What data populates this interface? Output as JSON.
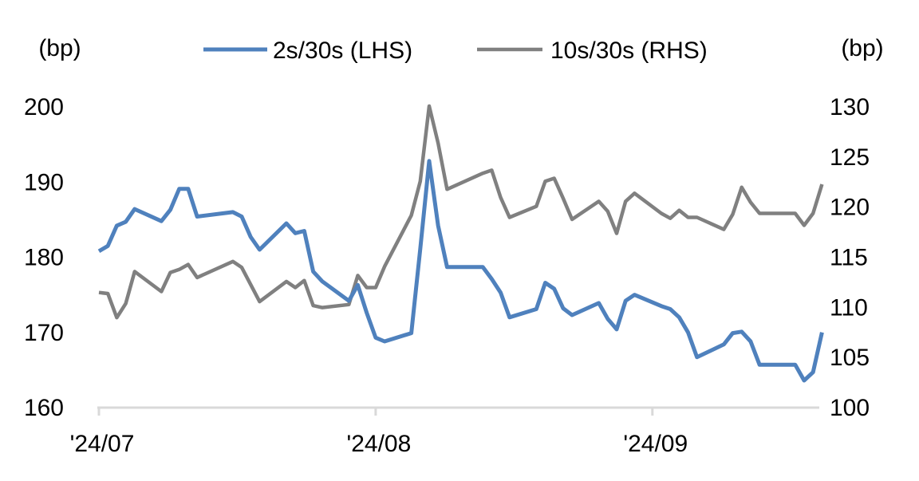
{
  "chart_data": {
    "type": "line",
    "title": "",
    "left_axis": {
      "unit_label": "(bp)",
      "ylim": [
        160,
        200
      ],
      "ticks": [
        160,
        170,
        180,
        190,
        200
      ]
    },
    "right_axis": {
      "unit_label": "(bp)",
      "ylim": [
        100,
        130
      ],
      "ticks": [
        100,
        105,
        110,
        115,
        120,
        125,
        130
      ]
    },
    "x_axis": {
      "range": [
        "2024-07-01",
        "2024-09-20"
      ],
      "ticks": [
        {
          "date": "2024-07-01",
          "label": "'24/07"
        },
        {
          "date": "2024-08-01",
          "label": "'24/08"
        },
        {
          "date": "2024-09-01",
          "label": "'24/09"
        }
      ]
    },
    "grid": false,
    "legend": {
      "placement": "top"
    },
    "x": [
      "2024-07-01",
      "2024-07-02",
      "2024-07-03",
      "2024-07-04",
      "2024-07-05",
      "2024-07-08",
      "2024-07-09",
      "2024-07-10",
      "2024-07-11",
      "2024-07-12",
      "2024-07-16",
      "2024-07-17",
      "2024-07-18",
      "2024-07-19",
      "2024-07-22",
      "2024-07-23",
      "2024-07-24",
      "2024-07-25",
      "2024-07-26",
      "2024-07-29",
      "2024-07-30",
      "2024-07-31",
      "2024-08-01",
      "2024-08-02",
      "2024-08-05",
      "2024-08-06",
      "2024-08-07",
      "2024-08-08",
      "2024-08-09",
      "2024-08-13",
      "2024-08-14",
      "2024-08-15",
      "2024-08-16",
      "2024-08-19",
      "2024-08-20",
      "2024-08-21",
      "2024-08-22",
      "2024-08-23",
      "2024-08-26",
      "2024-08-27",
      "2024-08-28",
      "2024-08-29",
      "2024-08-30",
      "2024-09-02",
      "2024-09-03",
      "2024-09-04",
      "2024-09-05",
      "2024-09-06",
      "2024-09-09",
      "2024-09-10",
      "2024-09-11",
      "2024-09-12",
      "2024-09-13",
      "2024-09-17",
      "2024-09-18",
      "2024-09-19",
      "2024-09-20"
    ],
    "series": [
      {
        "name": "2s/30s (LHS)",
        "axis": "left",
        "color": "#4f81bd",
        "values": [
          180.7,
          181.4,
          184.1,
          184.6,
          186.3,
          184.7,
          186.2,
          189.0,
          189.0,
          185.3,
          185.9,
          185.3,
          182.6,
          180.9,
          184.4,
          183.1,
          183.4,
          178.0,
          176.7,
          174.1,
          176.2,
          172.5,
          169.2,
          168.7,
          169.8,
          181.0,
          192.7,
          184.1,
          178.6,
          178.6,
          177.0,
          175.2,
          171.9,
          173.0,
          176.5,
          175.7,
          173.1,
          172.2,
          173.8,
          171.7,
          170.3,
          174.1,
          174.9,
          173.4,
          173.0,
          171.9,
          169.9,
          166.6,
          168.3,
          169.8,
          170.0,
          168.7,
          165.6,
          165.6,
          163.5,
          164.6,
          169.9
        ]
      },
      {
        "name": "10s/30s (RHS)",
        "axis": "right",
        "color": "#808080",
        "values": [
          111.4,
          111.3,
          108.9,
          110.3,
          113.5,
          111.5,
          113.4,
          113.7,
          114.2,
          112.9,
          114.5,
          113.9,
          112.2,
          110.5,
          112.5,
          111.9,
          112.6,
          110.1,
          109.9,
          110.2,
          113.1,
          111.9,
          111.9,
          114.0,
          119.1,
          122.5,
          130.0,
          126.3,
          121.7,
          123.3,
          123.6,
          120.9,
          118.9,
          120.0,
          122.5,
          122.8,
          120.8,
          118.7,
          120.5,
          119.5,
          117.3,
          120.5,
          121.3,
          119.3,
          118.8,
          119.6,
          118.9,
          118.9,
          117.7,
          119.2,
          121.9,
          120.4,
          119.3,
          119.3,
          118.1,
          119.3,
          122.2
        ]
      }
    ]
  }
}
